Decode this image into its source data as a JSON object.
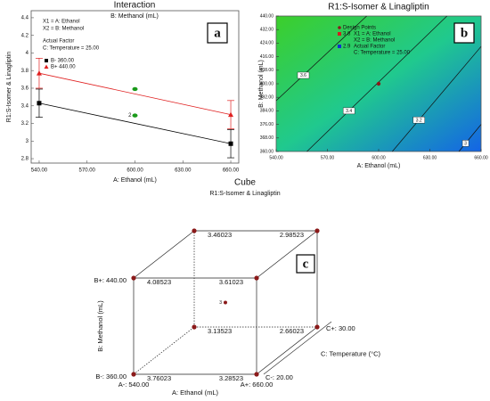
{
  "chart_data": [
    {
      "type": "line",
      "title": "Interaction",
      "subtitle": "B: Methanol (mL)",
      "panel_label": "a",
      "x_label": "A: Ethanol (mL)",
      "y_label": "R1:S-Isomer & Linagliptin",
      "annotations": [
        "X1 = A: Ethanol",
        "X2 = B: Methanol",
        "Actual Factor",
        "C: Temperature = 25.00"
      ],
      "x": [
        540,
        660
      ],
      "series": [
        {
          "name": "B- 360.00",
          "color": "#000000",
          "marker": "square",
          "values": [
            3.43,
            2.97
          ],
          "errors": [
            0.16,
            0.16
          ]
        },
        {
          "name": "B+ 440.00",
          "color": "#e02020",
          "marker": "triangle",
          "values": [
            3.77,
            3.3
          ],
          "errors": [
            0.17,
            0.16
          ]
        }
      ],
      "design_points": [
        {
          "x": 600,
          "value": 3.59
        },
        {
          "x": 600,
          "value": 3.29,
          "label": "2"
        }
      ],
      "design_point_color": "#1a9a1a",
      "xlim": [
        535,
        665
      ],
      "xticks": [
        {
          "value": 540,
          "label": "540.00"
        },
        {
          "value": 570,
          "label": "570.00"
        },
        {
          "value": 600,
          "label": "600.00"
        },
        {
          "value": 630,
          "label": "630.00"
        },
        {
          "value": 660,
          "label": "660.00"
        }
      ],
      "ylim": [
        2.75,
        4.48
      ],
      "yticks": [
        2.8,
        3,
        3.2,
        3.4,
        3.6,
        3.8,
        4,
        4.2,
        4.4
      ]
    },
    {
      "type": "contour",
      "title": "R1:S-Isomer & Linagliptin",
      "panel_label": "b",
      "x_label": "A: Ethanol (mL)",
      "y_label": "B: Methanol (mL)",
      "legend": {
        "design_points": "Design Points",
        "high": 3.8,
        "low": 2.9,
        "notes": [
          "X1 = A: Ethanol",
          "X2 = B: Methanol",
          "Actual Factor",
          "C: Temperature = 25.00"
        ]
      },
      "colors": [
        "#3ccf2a",
        "#20c98e",
        "#1464e6"
      ],
      "contours": [
        {
          "level": 3.6,
          "x": [
            540,
            593
          ],
          "y": [
            390,
            440
          ]
        },
        {
          "level": 3.4,
          "x": [
            558,
            640
          ],
          "y": [
            360,
            440
          ]
        },
        {
          "level": 3.2,
          "x": [
            608,
            660
          ],
          "y": [
            360,
            422
          ]
        },
        {
          "level": 3,
          "x": [
            647,
            660
          ],
          "y": [
            360,
            376
          ]
        }
      ],
      "design_points": [
        {
          "x": 600,
          "y": 400
        }
      ],
      "design_point_color": "#8b1a1a",
      "xlim": [
        540,
        660
      ],
      "xticks": [
        {
          "value": 540,
          "label": "540.00"
        },
        {
          "value": 570,
          "label": "570.00"
        },
        {
          "value": 600,
          "label": "600.00"
        },
        {
          "value": 630,
          "label": "630.00"
        },
        {
          "value": 660,
          "label": "660.00"
        }
      ],
      "ylim": [
        360,
        440
      ],
      "yticks": [
        {
          "value": 360,
          "label": "360.00"
        },
        {
          "value": 368,
          "label": "368.00"
        },
        {
          "value": 376,
          "label": "376.00"
        },
        {
          "value": 384,
          "label": "384.00"
        },
        {
          "value": 392,
          "label": "392.00"
        },
        {
          "value": 400,
          "label": "400.00"
        },
        {
          "value": 408,
          "label": "408.00"
        },
        {
          "value": 416,
          "label": "416.00"
        },
        {
          "value": 424,
          "label": "424.00"
        },
        {
          "value": 432,
          "label": "432.00"
        },
        {
          "value": 440,
          "label": "440.00"
        }
      ]
    },
    {
      "type": "cube",
      "title": "Cube",
      "subtitle": "R1:S-Isomer & Linagliptin",
      "panel_label": "c",
      "axis_labels": {
        "a": "A: Ethanol (mL)",
        "b": "B: Methanol (mL)",
        "c": "C: Temperature (°C)"
      },
      "level_labels": {
        "a": [
          "A-: 540.00",
          "A+: 660.00"
        ],
        "b": [
          "B-: 360.00",
          "B+: 440.00"
        ],
        "c": [
          "C-: 20.00",
          "C+: 30.00"
        ]
      },
      "alim": [
        540,
        660
      ],
      "blim": [
        360,
        440
      ],
      "clim": [
        20,
        30
      ],
      "corners": [
        {
          "A": 540,
          "B": 440,
          "C": 30,
          "value": 3.46023
        },
        {
          "A": 660,
          "B": 440,
          "C": 30,
          "value": 2.98523
        },
        {
          "A": 540,
          "B": 440,
          "C": 20,
          "value": 4.08523
        },
        {
          "A": 660,
          "B": 440,
          "C": 20,
          "value": 3.61023
        },
        {
          "A": 540,
          "B": 360,
          "C": 30,
          "value": 3.13523
        },
        {
          "A": 660,
          "B": 360,
          "C": 30,
          "value": 2.66023
        },
        {
          "A": 540,
          "B": 360,
          "C": 20,
          "value": 3.76023
        },
        {
          "A": 660,
          "B": 360,
          "C": 20,
          "value": 3.28523
        }
      ],
      "center_point": {
        "A": 600,
        "B": 400,
        "C": 25,
        "count": 3
      },
      "point_color": "#8b1a1a"
    }
  ]
}
